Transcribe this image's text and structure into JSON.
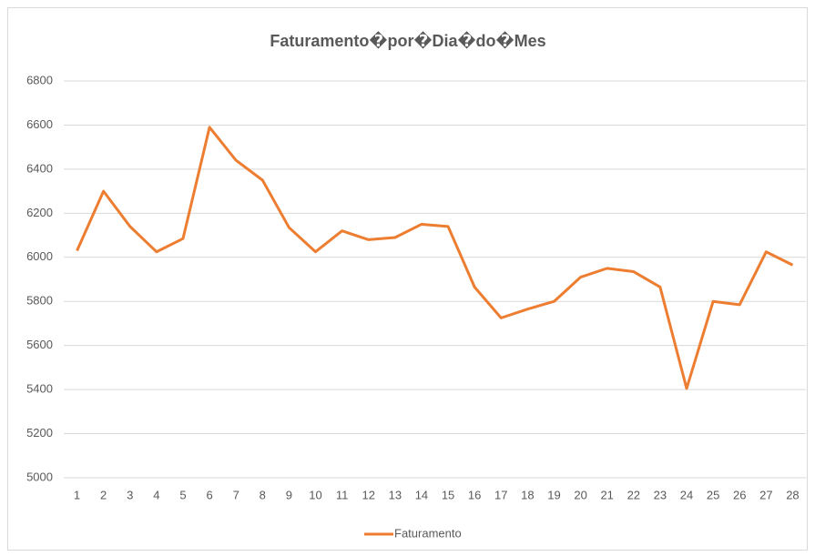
{
  "chart_data": {
    "type": "line",
    "title": "Faturamento�por�Dia�do�Mes",
    "categories": [
      1,
      2,
      3,
      4,
      5,
      6,
      7,
      8,
      9,
      10,
      11,
      12,
      13,
      14,
      15,
      16,
      17,
      18,
      19,
      20,
      21,
      22,
      23,
      24,
      25,
      26,
      27,
      28
    ],
    "series": [
      {
        "name": "Faturamento",
        "color": "#ed7d31",
        "values": [
          6030,
          6300,
          6140,
          6025,
          6085,
          6590,
          6440,
          6350,
          6135,
          6025,
          6120,
          6080,
          6090,
          6150,
          6140,
          5865,
          5725,
          5765,
          5800,
          5910,
          5950,
          5935,
          5865,
          5405,
          5800,
          5785,
          6025,
          5965
        ]
      }
    ],
    "ylim": [
      5000,
      6800
    ],
    "yticks": [
      5000,
      5200,
      5400,
      5600,
      5800,
      6000,
      6200,
      6400,
      6600,
      6800
    ],
    "grid": true,
    "legend": "bottom"
  }
}
